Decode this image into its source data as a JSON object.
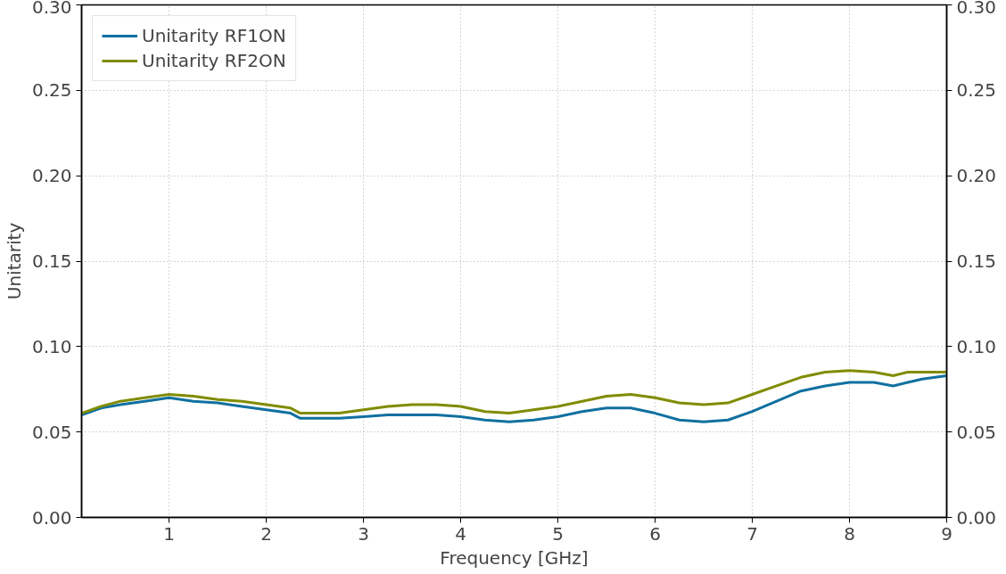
{
  "chart_data": {
    "type": "line",
    "xlabel": "Frequency [GHz]",
    "ylabel": "Unitarity",
    "x": [
      0.1,
      0.3,
      0.5,
      0.75,
      1.0,
      1.25,
      1.5,
      1.75,
      2.0,
      2.25,
      2.35,
      2.75,
      3.0,
      3.25,
      3.5,
      3.75,
      4.0,
      4.25,
      4.5,
      4.75,
      5.0,
      5.25,
      5.5,
      5.75,
      6.0,
      6.25,
      6.5,
      6.75,
      7.0,
      7.25,
      7.5,
      7.75,
      8.0,
      8.25,
      8.45,
      8.6,
      8.75,
      9.0
    ],
    "series": [
      {
        "name": "Unitarity RF1ON",
        "color": "#1070a0",
        "values": [
          0.06,
          0.064,
          0.066,
          0.068,
          0.07,
          0.068,
          0.067,
          0.065,
          0.063,
          0.061,
          0.058,
          0.058,
          0.059,
          0.06,
          0.06,
          0.06,
          0.059,
          0.057,
          0.056,
          0.057,
          0.059,
          0.062,
          0.064,
          0.064,
          0.061,
          0.057,
          0.056,
          0.057,
          0.062,
          0.068,
          0.074,
          0.077,
          0.079,
          0.079,
          0.077,
          0.079,
          0.081,
          0.083
        ]
      },
      {
        "name": "Unitarity RF2ON",
        "color": "#808c00",
        "values": [
          0.061,
          0.065,
          0.068,
          0.07,
          0.072,
          0.071,
          0.069,
          0.068,
          0.066,
          0.064,
          0.061,
          0.061,
          0.063,
          0.065,
          0.066,
          0.066,
          0.065,
          0.062,
          0.061,
          0.063,
          0.065,
          0.068,
          0.071,
          0.072,
          0.07,
          0.067,
          0.066,
          0.067,
          0.072,
          0.077,
          0.082,
          0.085,
          0.086,
          0.085,
          0.083,
          0.085,
          0.085,
          0.085
        ]
      }
    ],
    "xlim": [
      0.1,
      9
    ],
    "xticks": [
      1,
      2,
      3,
      4,
      5,
      6,
      7,
      8,
      9
    ],
    "ylim": [
      0,
      0.3
    ],
    "yticks": [
      {
        "value": 0,
        "label": "0.00"
      },
      {
        "value": 0.05,
        "label": "0.05"
      },
      {
        "value": 0.1,
        "label": "0.10"
      },
      {
        "value": 0.15,
        "label": "0.15"
      },
      {
        "value": 0.2,
        "label": "0.20"
      },
      {
        "value": 0.25,
        "label": "0.25"
      },
      {
        "value": 0.3,
        "label": "0.30"
      }
    ],
    "y2lim": [
      0,
      0.3
    ],
    "y2ticks": [
      {
        "value": 0,
        "label": "0.00"
      },
      {
        "value": 0.05,
        "label": "0.05"
      },
      {
        "value": 0.1,
        "label": "0.10"
      },
      {
        "value": 0.15,
        "label": "0.15"
      },
      {
        "value": 0.2,
        "label": "0.20"
      },
      {
        "value": 0.25,
        "label": "0.25"
      },
      {
        "value": 0.3,
        "label": "0.30"
      }
    ],
    "grid": true,
    "legend": "top left",
    "line_style": "solid",
    "marker": "none"
  }
}
